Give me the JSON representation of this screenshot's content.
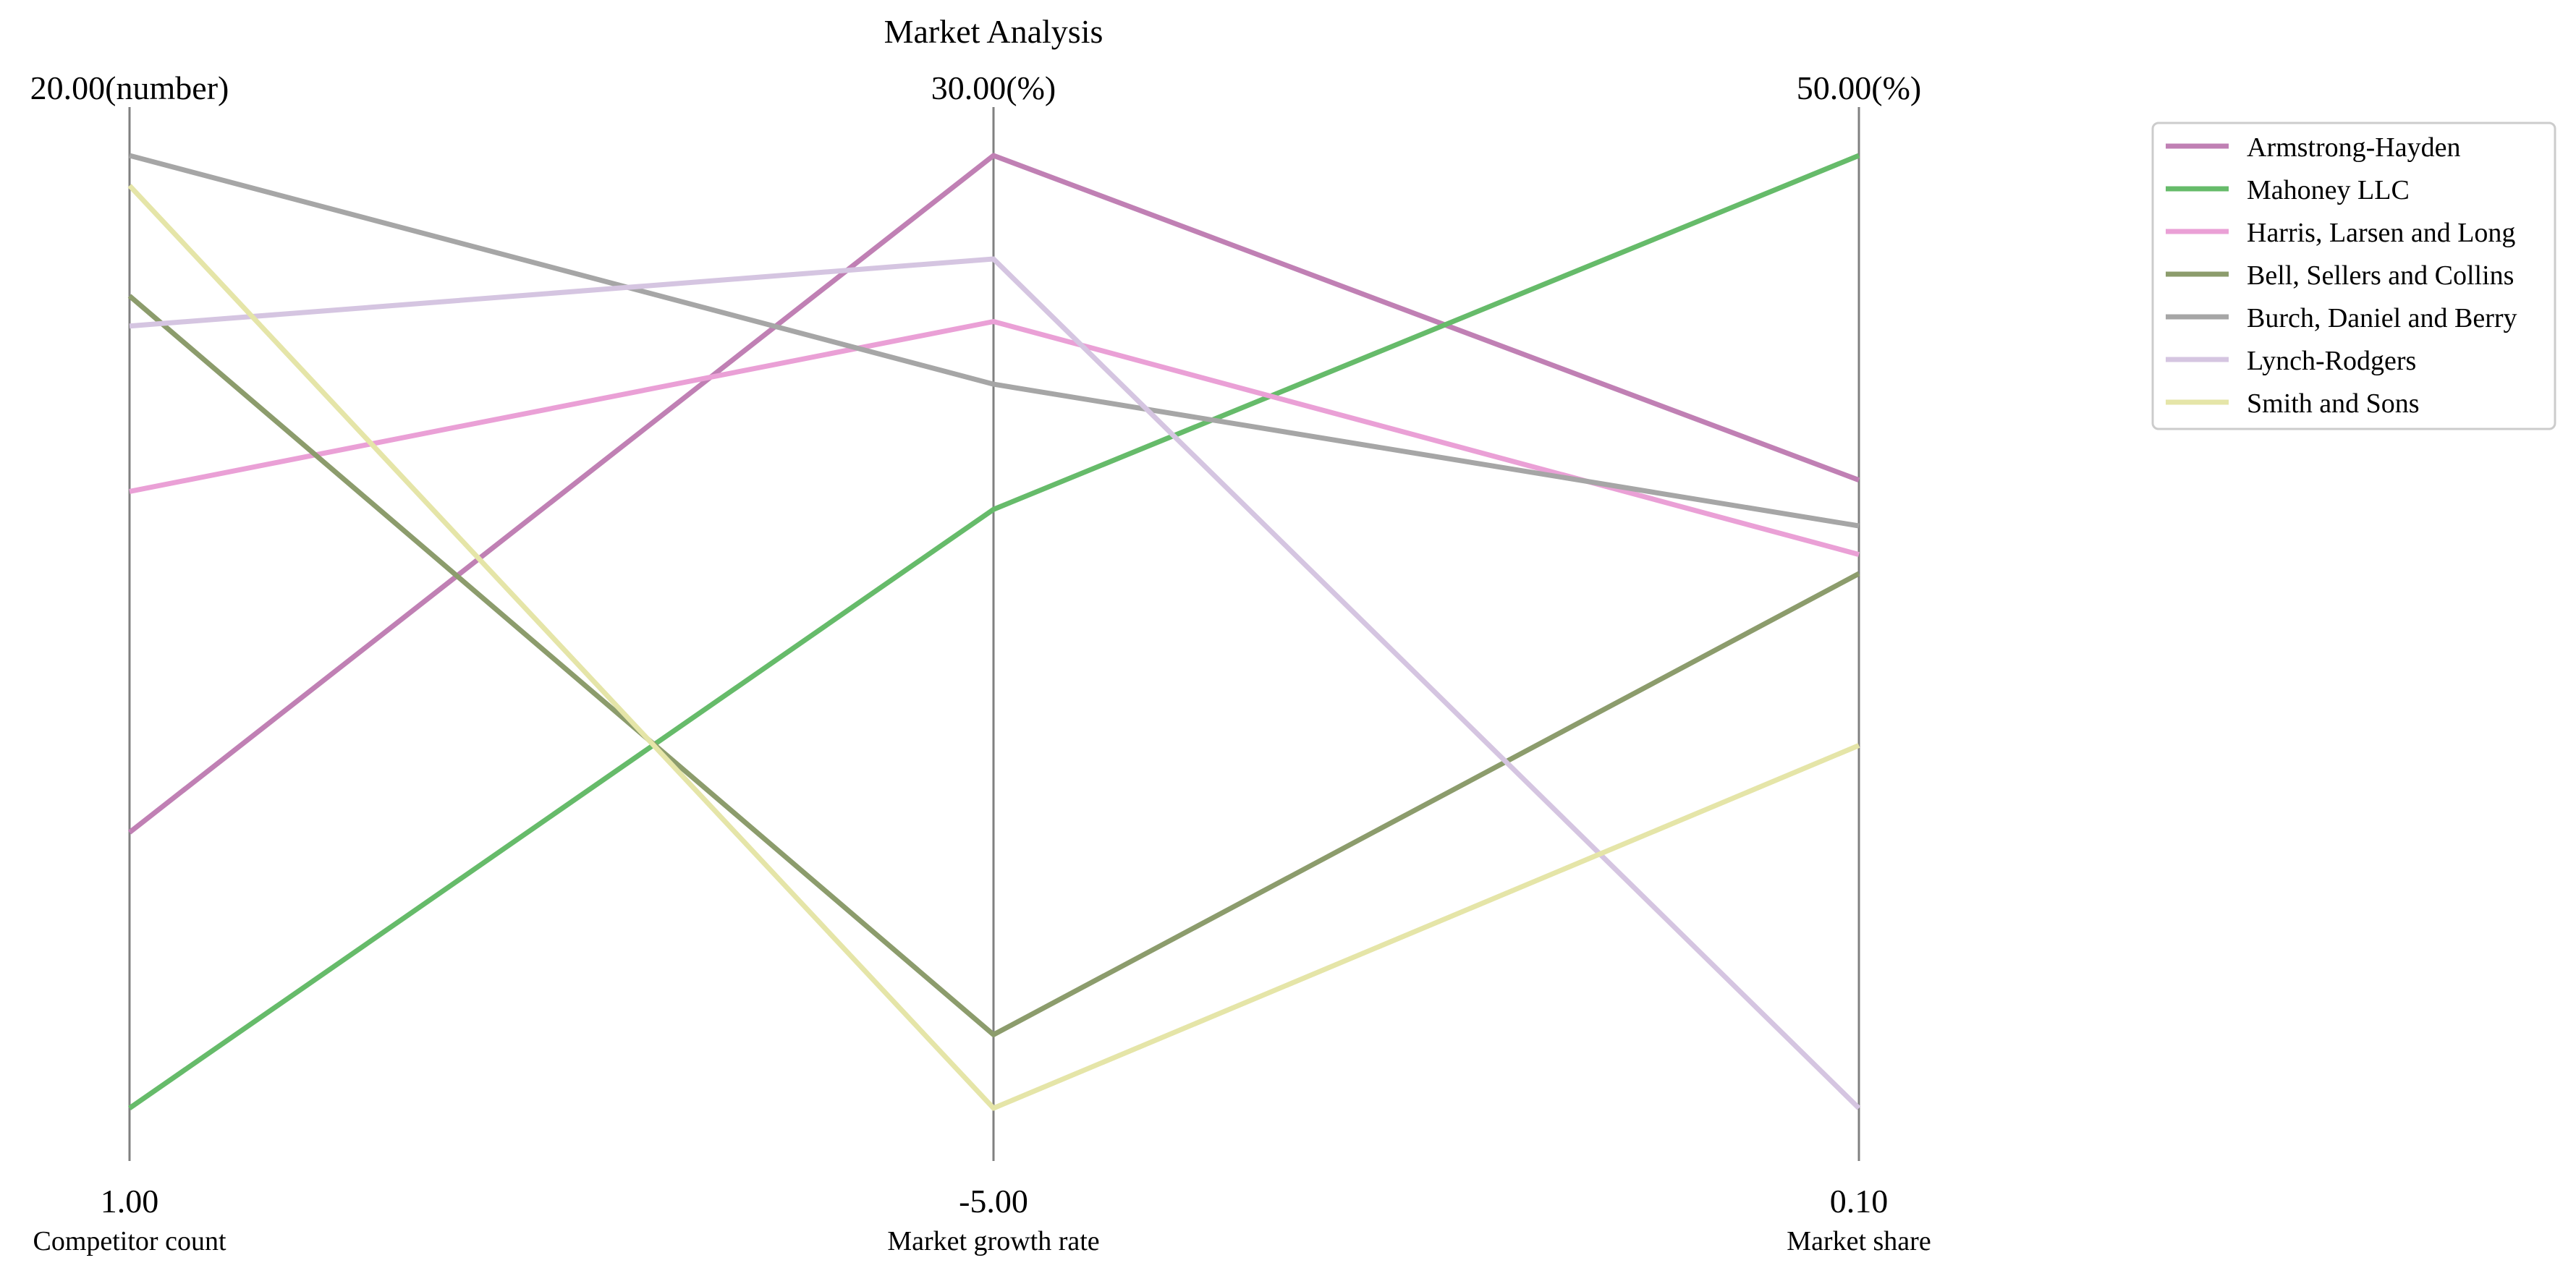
{
  "chart_data": {
    "type": "parallel-coordinates",
    "title": "Market Analysis",
    "axes": [
      {
        "label": "Competitor count",
        "min_label": "1.00",
        "max_label": "20.00(number)",
        "min": 1.0,
        "max": 20.0
      },
      {
        "label": "Market growth rate",
        "min_label": "-5.00",
        "max_label": "30.00(%)",
        "min": -5.0,
        "max": 30.0
      },
      {
        "label": "Market share",
        "min_label": "0.10",
        "max_label": "50.00(%)",
        "min": 0.1,
        "max": 50.0
      }
    ],
    "series": [
      {
        "name": "Armstrong-Hayden",
        "color": "#c080b4",
        "values": [
          6.5,
          30.0,
          33.0
        ]
      },
      {
        "name": "Mahoney LLC",
        "color": "#66bb6a",
        "values": [
          1.0,
          17.0,
          50.0
        ]
      },
      {
        "name": "Harris, Larsen and Long",
        "color": "#eaa0d6",
        "values": [
          13.3,
          23.9,
          29.1
        ]
      },
      {
        "name": "Bell, Sellers and Collins",
        "color": "#8c9c6c",
        "values": [
          17.2,
          -2.3,
          28.1
        ]
      },
      {
        "name": "Burch, Daniel and Berry",
        "color": "#a6a6a6",
        "values": [
          20.0,
          21.6,
          30.6
        ]
      },
      {
        "name": "Lynch-Rodgers",
        "color": "#d5c5e1",
        "values": [
          16.6,
          26.2,
          0.1
        ]
      },
      {
        "name": "Smith and Sons",
        "color": "#e5e5a8",
        "values": [
          19.4,
          -5.0,
          19.1
        ]
      }
    ],
    "legend_position": "top-right",
    "grid": false
  }
}
